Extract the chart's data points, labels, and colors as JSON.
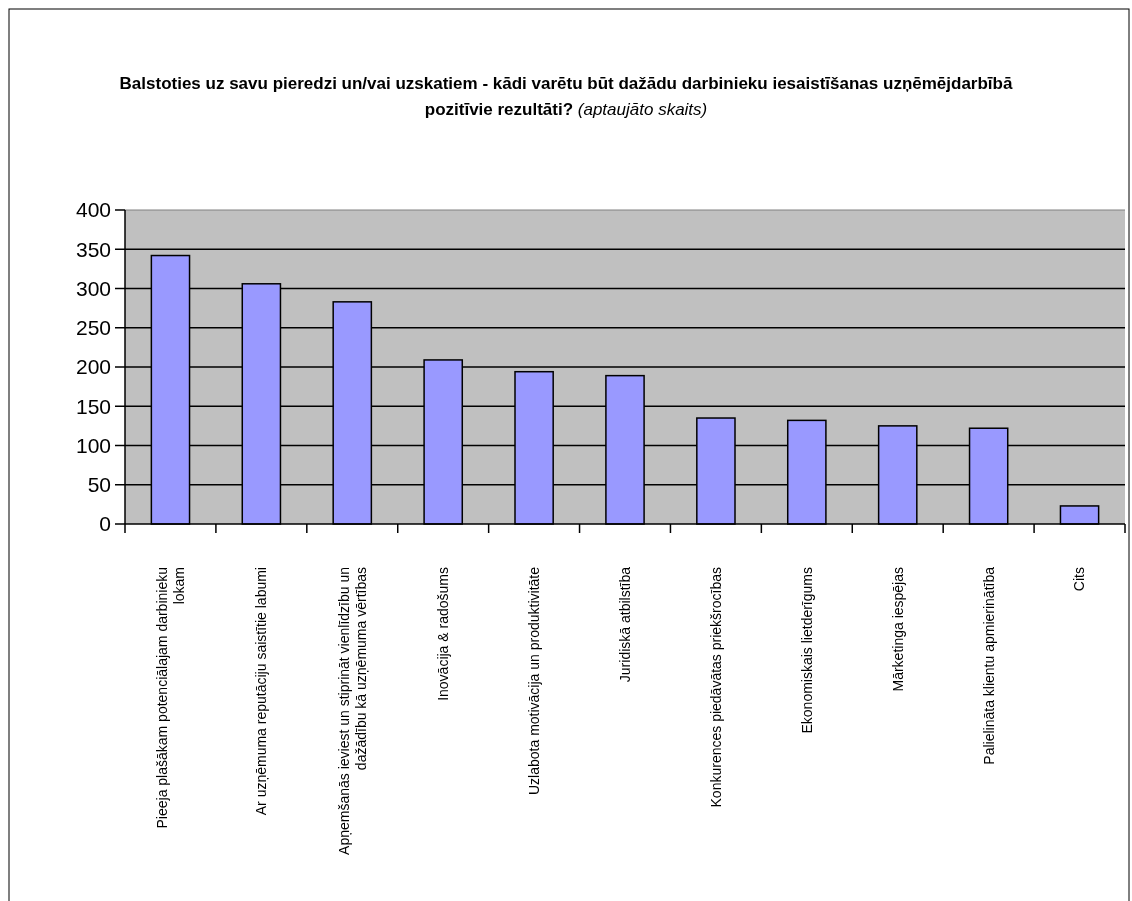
{
  "chart_data": {
    "type": "bar",
    "title": "Balstoties uz savu pieredzi un/vai uzskatiem - kādi varētu būt dažādu darbinieku iesaistīšanas uzņēmējdarbībā pozitīvie rezultāti?",
    "subtitle": "(aptaujāto skaits)",
    "categories": [
      "Pieeja plašākam potenciālajam darbinieku lokam",
      "Ar uzņēmuma reputāciju saistītie labumi",
      "Apņemšanās ieviest un stiprināt vienlīdzību un dažādību kā uzņēmuma vērtības",
      "Inovācija & radošums",
      "Uzlabota motivācija un produktivitāte",
      "Juridiskā atbilstība",
      "Konkurences piedāvātas priekšrocības",
      "Ekonomiskais lietderīgums",
      "Mārketinga iespējas",
      "Palielināta klientu apmierinātība",
      "Cits"
    ],
    "values": [
      342,
      306,
      283,
      209,
      194,
      189,
      135,
      132,
      125,
      122,
      23
    ],
    "color": "#9999ff",
    "ylim": [
      0,
      400
    ],
    "yticks": [
      0,
      50,
      100,
      150,
      200,
      250,
      300,
      350,
      400
    ],
    "grid": "y"
  }
}
